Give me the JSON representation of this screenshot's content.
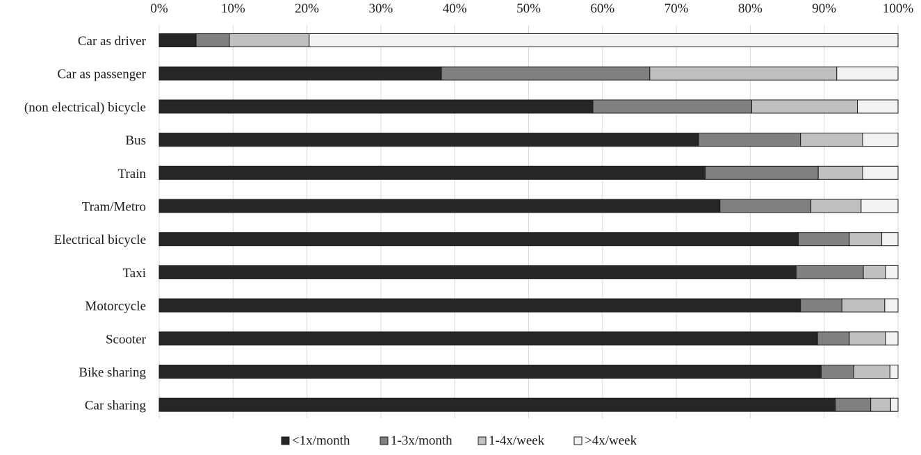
{
  "chart_data": {
    "type": "bar",
    "orientation": "horizontal",
    "stacked": true,
    "percent": true,
    "title": "",
    "xlabel": "",
    "ylabel": "",
    "xlim": [
      0,
      100
    ],
    "x_ticks": [
      "0%",
      "10%",
      "20%",
      "30%",
      "40%",
      "50%",
      "60%",
      "70%",
      "80%",
      "90%",
      "100%"
    ],
    "x_axis_position": "top",
    "grid": true,
    "legend_position": "bottom",
    "categories": [
      "Car as driver",
      "Car as passenger",
      "(non electrical) bicycle",
      "Bus",
      "Train",
      "Tram/Metro",
      "Electrical bicycle",
      "Taxi",
      "Motorcycle",
      "Scooter",
      "Bike sharing",
      "Car sharing"
    ],
    "series": [
      {
        "name": "<1x/month",
        "color": "#262626",
        "values": [
          5,
          38.2,
          58.7,
          73,
          73.9,
          75.9,
          86.5,
          86.2,
          86.8,
          89.1,
          89.6,
          91.5
        ]
      },
      {
        "name": "1-3x/month",
        "color": "#808080",
        "values": [
          4.5,
          28.2,
          21.5,
          13.8,
          15.3,
          12.3,
          6.9,
          9.1,
          5.6,
          4.3,
          4.4,
          4.8
        ]
      },
      {
        "name": "1-4x/week",
        "color": "#c0c0c0",
        "values": [
          10.8,
          25.3,
          14.3,
          8.4,
          6,
          6.8,
          4.4,
          3,
          5.8,
          4.9,
          4.9,
          2.7
        ]
      },
      {
        "name": ">4x/week",
        "color": "#f2f2f2",
        "values": [
          79.7,
          8.3,
          5.5,
          4.8,
          4.8,
          5,
          2.2,
          1.7,
          1.8,
          1.7,
          1.1,
          1
        ]
      }
    ]
  }
}
